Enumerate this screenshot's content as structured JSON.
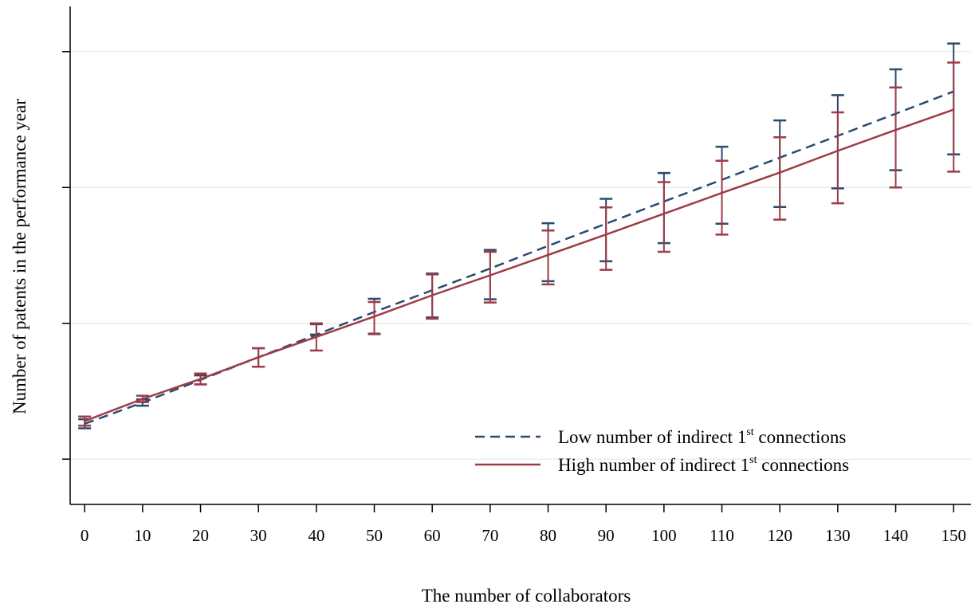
{
  "chart_data": {
    "type": "line",
    "title": "",
    "xlabel": "The number of collaborators",
    "ylabel": "Number of patents in the performance year",
    "xlim": [
      -2.5,
      153
    ],
    "ylim": [
      -0.1,
      1.0
    ],
    "x_ticks": [
      0,
      10,
      20,
      30,
      40,
      50,
      60,
      70,
      80,
      90,
      100,
      110,
      120,
      130,
      140,
      150
    ],
    "x_tick_labels": [
      "0",
      "10",
      "20",
      "30",
      "40",
      "50",
      "60",
      "70",
      "80",
      "90",
      "100",
      "110",
      "120",
      "130",
      "140",
      "150"
    ],
    "y_ticks": [
      0,
      0.3,
      0.6,
      0.9
    ],
    "y_tick_labels": [
      "",
      "",
      "",
      ""
    ],
    "grid": "horizontal",
    "legend": {
      "placement": "bottom-right",
      "entries": [
        {
          "pre": "Low number of indirect 1",
          "sup": "st",
          "post": " connections",
          "style": "dashed",
          "color": "#2a4a6e"
        },
        {
          "pre": "High number of indirect 1",
          "sup": "st",
          "post": " connections",
          "style": "solid",
          "color": "#9e3b46"
        }
      ]
    },
    "series": [
      {
        "name": "Low number of indirect 1st connections",
        "color": "#2a4a6e",
        "style": "dashed",
        "x": [
          0,
          10,
          20,
          30,
          40,
          50,
          60,
          70,
          80,
          90,
          100,
          110,
          120,
          130,
          140,
          150
        ],
        "y": [
          0.078,
          0.125,
          0.175,
          0.225,
          0.275,
          0.325,
          0.373,
          0.421,
          0.471,
          0.52,
          0.569,
          0.617,
          0.666,
          0.714,
          0.763,
          0.812
        ],
        "lower": [
          0.068,
          0.118,
          0.165,
          0.204,
          0.275,
          0.277,
          0.313,
          0.353,
          0.393,
          0.437,
          0.477,
          0.52,
          0.557,
          0.598,
          0.638,
          0.673
        ],
        "upper": [
          0.088,
          0.132,
          0.185,
          0.245,
          0.298,
          0.354,
          0.41,
          0.462,
          0.521,
          0.575,
          0.632,
          0.69,
          0.748,
          0.804,
          0.861,
          0.918
        ]
      },
      {
        "name": "High number of indirect 1st connections",
        "color": "#9e3b46",
        "style": "solid",
        "x": [
          0,
          10,
          20,
          30,
          40,
          50,
          60,
          70,
          80,
          90,
          100,
          110,
          120,
          130,
          140,
          150
        ],
        "y": [
          0.084,
          0.133,
          0.177,
          0.225,
          0.27,
          0.315,
          0.362,
          0.406,
          0.451,
          0.496,
          0.542,
          0.588,
          0.633,
          0.681,
          0.727,
          0.772
        ],
        "lower": [
          0.074,
          0.126,
          0.165,
          0.204,
          0.24,
          0.276,
          0.31,
          0.346,
          0.386,
          0.418,
          0.458,
          0.496,
          0.529,
          0.565,
          0.6,
          0.635
        ],
        "upper": [
          0.094,
          0.14,
          0.189,
          0.245,
          0.3,
          0.347,
          0.408,
          0.458,
          0.505,
          0.556,
          0.612,
          0.659,
          0.711,
          0.766,
          0.821,
          0.876
        ]
      }
    ]
  }
}
